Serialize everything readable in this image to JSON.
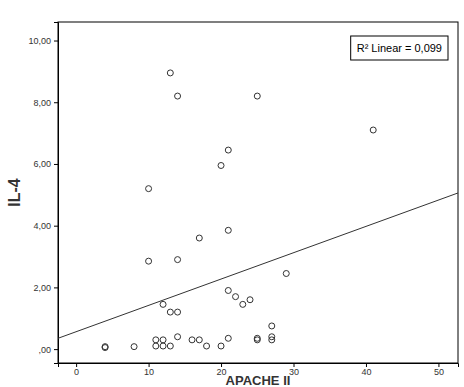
{
  "chart_data": {
    "type": "scatter",
    "x_label": "APACHE II",
    "y_label": "IL-4",
    "annotation": "R² Linear = 0,099",
    "xlim": [
      -2.5,
      52.7
    ],
    "ylim": [
      -0.45,
      10.6
    ],
    "xticks": [
      0,
      10,
      20,
      30,
      40,
      50
    ],
    "yticks": [
      {
        "value": 0,
        "label": ",00"
      },
      {
        "value": 2,
        "label": "2,00"
      },
      {
        "value": 4,
        "label": "4,00"
      },
      {
        "value": 6,
        "label": "6,00"
      },
      {
        "value": 8,
        "label": "8,00"
      },
      {
        "value": 10,
        "label": "10,00"
      }
    ],
    "series": [
      {
        "type": "scatter",
        "marker": "circle-open",
        "color": "#333333",
        "x": [
          4,
          4,
          8,
          10,
          10,
          11,
          11,
          12,
          12,
          12,
          13,
          13,
          13,
          14,
          14,
          14,
          14,
          16,
          17,
          17,
          18,
          20,
          20,
          21,
          21,
          21,
          21,
          22,
          23,
          24,
          25,
          25,
          25,
          27,
          27,
          27,
          29,
          41
        ],
        "values": [
          0.05,
          0.08,
          0.08,
          5.2,
          2.85,
          0.1,
          0.3,
          0.1,
          0.3,
          1.45,
          8.95,
          1.2,
          0.1,
          8.2,
          2.9,
          1.2,
          0.4,
          0.3,
          3.6,
          0.3,
          0.1,
          5.95,
          0.1,
          6.45,
          3.85,
          1.9,
          0.35,
          1.7,
          1.45,
          1.6,
          8.2,
          0.3,
          0.35,
          0.75,
          0.4,
          0.3,
          2.45,
          7.1
        ]
      },
      {
        "type": "line",
        "line_style": "solid",
        "color": "#333333",
        "x": [
          -2.5,
          52.7
        ],
        "values": [
          0.35,
          5.06
        ]
      }
    ]
  }
}
